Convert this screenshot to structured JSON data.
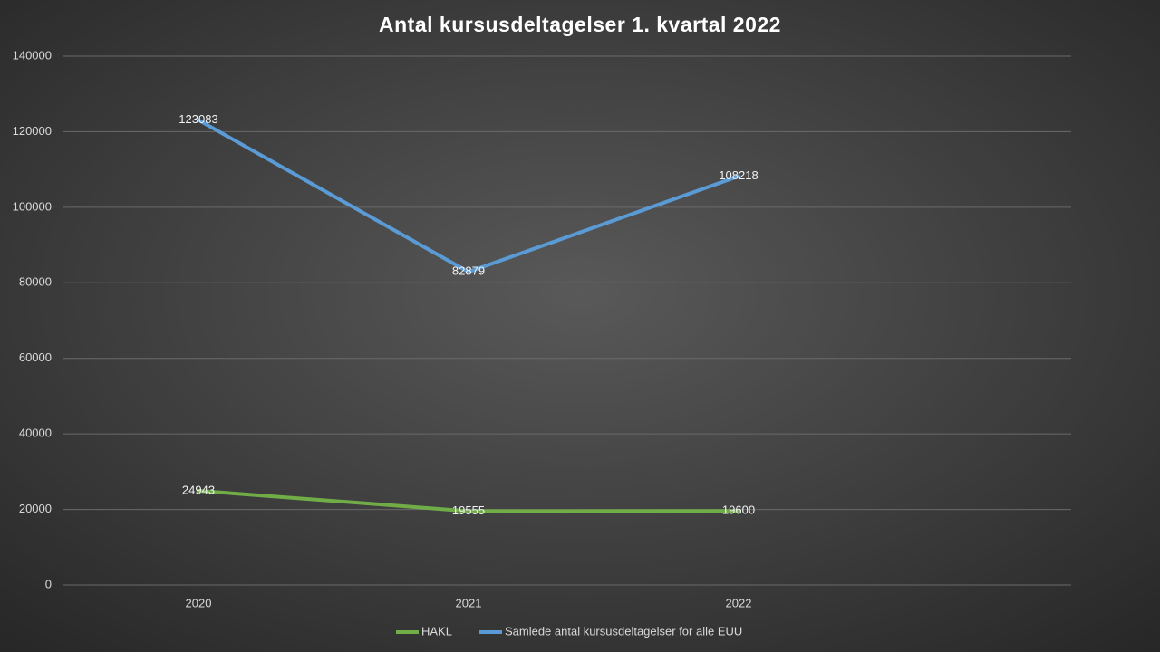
{
  "chart_data": {
    "type": "line",
    "title": "Antal kursusdeltagelser  1. kvartal 2022",
    "categories": [
      "2020",
      "2021",
      "2022"
    ],
    "series": [
      {
        "name": "HAKL",
        "color": "#70ad47",
        "values": [
          24943,
          19555,
          19600
        ]
      },
      {
        "name": "Samlede antal kursusdeltagelser for alle EUU",
        "color": "#5b9bd5",
        "values": [
          123083,
          82879,
          108218
        ]
      }
    ],
    "ylim": [
      0,
      140000
    ],
    "yticks": [
      0,
      20000,
      40000,
      60000,
      80000,
      100000,
      120000,
      140000
    ],
    "grid": true,
    "legend": "bottom",
    "data_labels": true
  }
}
